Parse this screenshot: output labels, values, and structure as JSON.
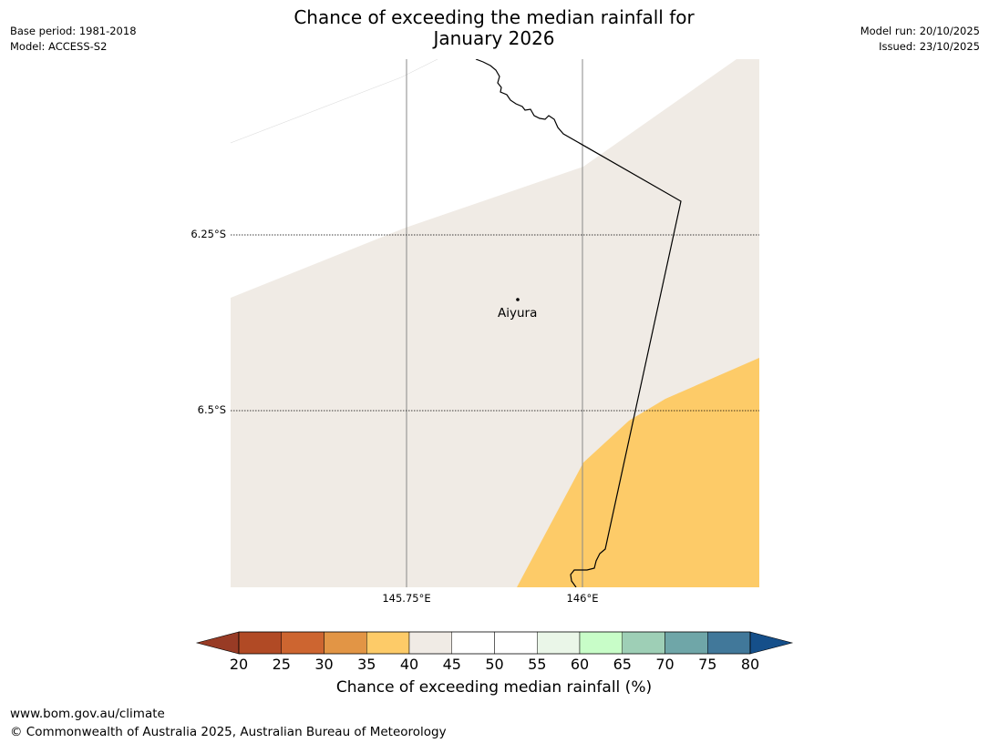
{
  "header": {
    "title_line1": "Chance of exceeding the median rainfall for",
    "title_line2": "January 2026",
    "base_period": "Base period: 1981-2018",
    "model": "Model: ACCESS-S2",
    "model_run": "Model run: 20/10/2025",
    "issued": "Issued: 23/10/2025"
  },
  "map": {
    "lat_gridlines": [
      "6.25°S",
      "6.5°S"
    ],
    "lon_gridlines": [
      "145.75°E",
      "146°E"
    ],
    "place": {
      "name": "Aiyura"
    },
    "region_categories": [
      "40-45%",
      "35-40%"
    ]
  },
  "legend": {
    "title": "Chance of exceeding median rainfall (%)",
    "ticks": [
      "20",
      "25",
      "30",
      "35",
      "40",
      "45",
      "50",
      "55",
      "60",
      "65",
      "70",
      "75",
      "80"
    ],
    "colors": [
      "#b14a25",
      "#cd6530",
      "#e29545",
      "#fdcb68",
      "#f0ebe5",
      "#ffffff",
      "#ffffff",
      "#eaf6e8",
      "#c8fdc8",
      "#9ecfb6",
      "#6fa6a8",
      "#41789a"
    ],
    "low_extend_color": "#983b25",
    "high_extend_color": "#154f8a"
  },
  "footer": {
    "url": "www.bom.gov.au/climate",
    "copyright": "© Commonwealth of Australia 2025, Australian Bureau of Meteorology"
  }
}
